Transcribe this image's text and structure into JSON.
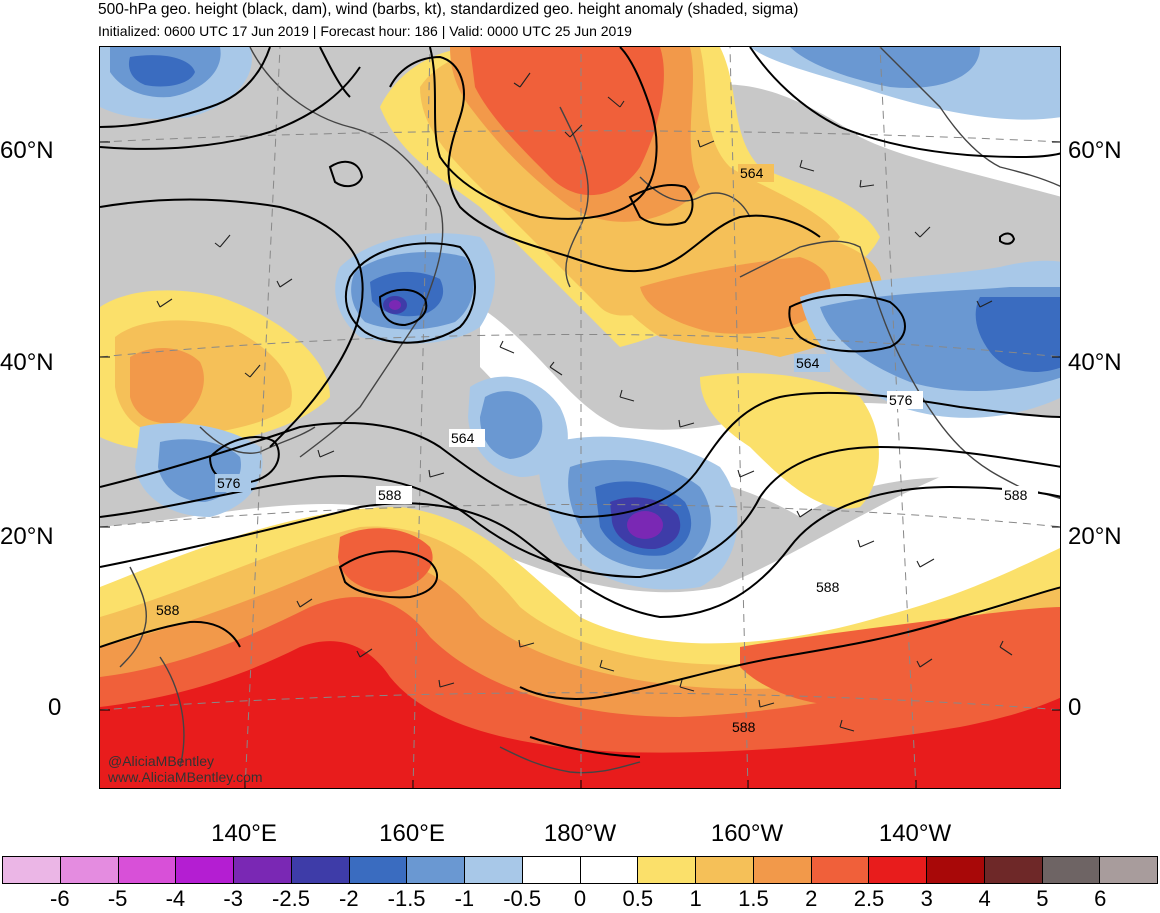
{
  "header": {
    "title": "500-hPa geo. height (black, dam), wind (barbs, kt), standardized geo. height anomaly (shaded, sigma)",
    "subtitle": "Initialized: 0600 UTC 17 Jun 2019 | Forecast hour: 186 | Valid: 0000 UTC 25 Jun 2019"
  },
  "map": {
    "lat_labels": [
      "60°N",
      "40°N",
      "20°N",
      "0"
    ],
    "lon_labels": [
      "140°E",
      "160°E",
      "180°W",
      "160°W",
      "140°W"
    ],
    "contour_labels": [
      "564",
      "564",
      "564",
      "576",
      "576",
      "588",
      "588",
      "588",
      "588",
      "588"
    ],
    "credit_handle": "@AliciaMBentley",
    "credit_site": "www.AliciaMBentley.com"
  },
  "colorbar": {
    "labels": [
      "-6",
      "-5",
      "-4",
      "-3",
      "-2.5",
      "-2",
      "-1.5",
      "-1",
      "-0.5",
      "0",
      "0.5",
      "1",
      "1.5",
      "2",
      "2.5",
      "3",
      "4",
      "5",
      "6"
    ],
    "colors": [
      "#ebb6e6",
      "#e48ce0",
      "#d850d8",
      "#b41ed2",
      "#7a28b4",
      "#3e3ca8",
      "#3a6cc0",
      "#6a98d2",
      "#a8c8e8",
      "#ffffff",
      "#ffffff",
      "#fbe06a",
      "#f5c058",
      "#f2994a",
      "#f0603a",
      "#e81c1c",
      "#a80808",
      "#6e2828",
      "#6e6464",
      "#a89c9c"
    ]
  },
  "colors": {
    "background_gray": "#c8c8c8",
    "coast": "#444444",
    "contour": "#000000"
  }
}
